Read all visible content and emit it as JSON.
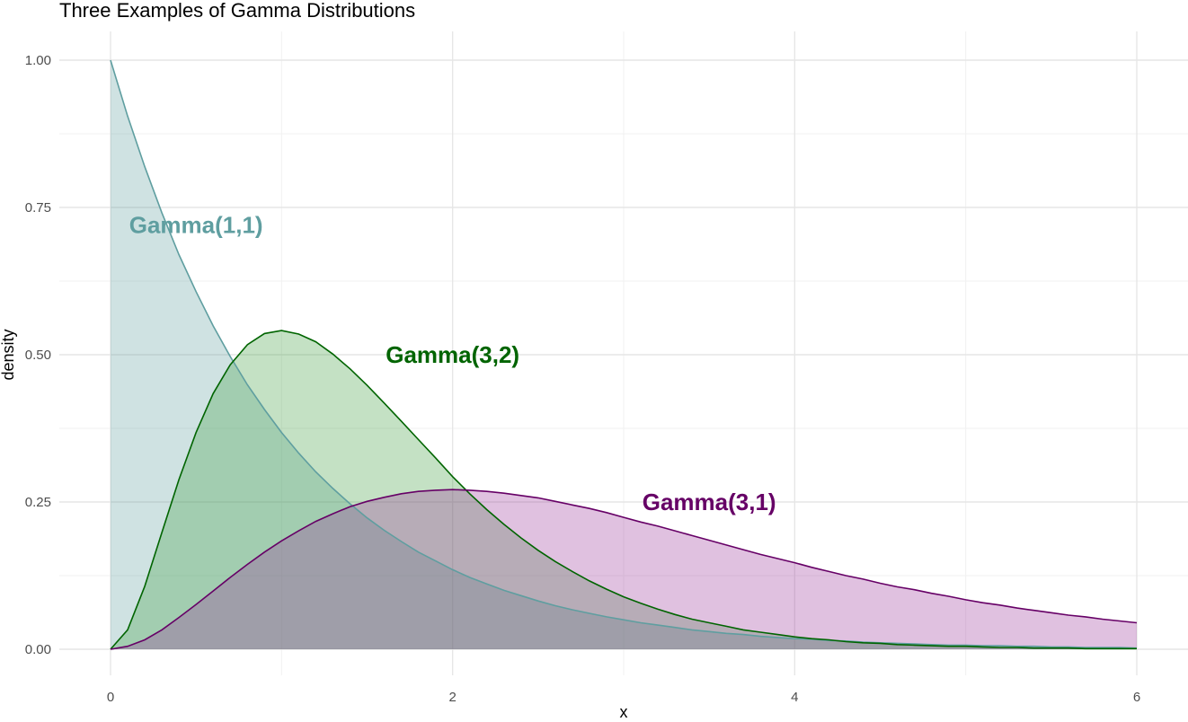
{
  "chart_data": {
    "type": "area",
    "title": "Three Examples of Gamma Distributions",
    "xlabel": "x",
    "ylabel": "density",
    "xlim": [
      0,
      6
    ],
    "ylim": [
      0,
      1
    ],
    "x_ticks": [
      0,
      2,
      4,
      6
    ],
    "x_tick_labels": [
      "0",
      "2",
      "4",
      "6"
    ],
    "x_minor_ticks": [
      1,
      3,
      5
    ],
    "y_ticks": [
      0,
      0.25,
      0.5,
      0.75,
      1.0
    ],
    "y_tick_labels": [
      "0.00",
      "0.25",
      "0.50",
      "0.75",
      "1.00"
    ],
    "y_minor_ticks": [
      0.125,
      0.375,
      0.625,
      0.875
    ],
    "grid": true,
    "legend": "none",
    "x": [
      0,
      0.1,
      0.2,
      0.3,
      0.4,
      0.5,
      0.6,
      0.7,
      0.8,
      0.9,
      1.0,
      1.1,
      1.2,
      1.3,
      1.4,
      1.5,
      1.6,
      1.7,
      1.8,
      1.9,
      2.0,
      2.1,
      2.2,
      2.3,
      2.4,
      2.5,
      2.6,
      2.7,
      2.8,
      2.9,
      3.0,
      3.1,
      3.2,
      3.3,
      3.4,
      3.5,
      3.6,
      3.7,
      3.8,
      3.9,
      4.0,
      4.1,
      4.2,
      4.3,
      4.4,
      4.5,
      4.6,
      4.7,
      4.8,
      4.9,
      5.0,
      5.1,
      5.2,
      5.3,
      5.4,
      5.5,
      5.6,
      5.7,
      5.8,
      5.9,
      6.0
    ],
    "series": [
      {
        "name": "Gamma(1,1)",
        "color": "#5f9ea0",
        "fill": "#5f9ea0",
        "values": [
          1.0,
          0.905,
          0.819,
          0.741,
          0.67,
          0.607,
          0.549,
          0.497,
          0.449,
          0.407,
          0.368,
          0.333,
          0.301,
          0.273,
          0.247,
          0.223,
          0.202,
          0.183,
          0.165,
          0.15,
          0.135,
          0.122,
          0.111,
          0.1,
          0.091,
          0.082,
          0.074,
          0.067,
          0.061,
          0.055,
          0.05,
          0.045,
          0.041,
          0.037,
          0.033,
          0.03,
          0.027,
          0.025,
          0.022,
          0.02,
          0.018,
          0.017,
          0.015,
          0.014,
          0.012,
          0.011,
          0.01,
          0.009,
          0.008,
          0.007,
          0.007,
          0.006,
          0.006,
          0.005,
          0.005,
          0.004,
          0.004,
          0.003,
          0.003,
          0.003,
          0.002
        ],
        "label": {
          "text": "Gamma(1,1)",
          "x": 0.5,
          "y": 0.72
        }
      },
      {
        "name": "Gamma(3,2)",
        "color": "#006400",
        "fill": "#3d9a3d",
        "values": [
          0.0,
          0.033,
          0.107,
          0.198,
          0.288,
          0.368,
          0.434,
          0.483,
          0.517,
          0.536,
          0.541,
          0.535,
          0.522,
          0.501,
          0.476,
          0.448,
          0.418,
          0.387,
          0.356,
          0.325,
          0.293,
          0.264,
          0.237,
          0.212,
          0.189,
          0.168,
          0.149,
          0.132,
          0.116,
          0.102,
          0.089,
          0.078,
          0.068,
          0.059,
          0.051,
          0.045,
          0.039,
          0.033,
          0.029,
          0.025,
          0.021,
          0.018,
          0.016,
          0.013,
          0.011,
          0.01,
          0.008,
          0.007,
          0.006,
          0.005,
          0.005,
          0.004,
          0.003,
          0.003,
          0.002,
          0.002,
          0.002,
          0.001,
          0.001,
          0.001,
          0.001
        ],
        "label": {
          "text": "Gamma(3,2)",
          "x": 2.0,
          "y": 0.5
        }
      },
      {
        "name": "Gamma(3,1)",
        "color": "#660066",
        "fill": "#993399",
        "values": [
          0.0,
          0.005,
          0.016,
          0.033,
          0.054,
          0.076,
          0.099,
          0.122,
          0.144,
          0.165,
          0.184,
          0.201,
          0.217,
          0.23,
          0.242,
          0.251,
          0.258,
          0.264,
          0.268,
          0.27,
          0.271,
          0.27,
          0.268,
          0.265,
          0.261,
          0.257,
          0.251,
          0.245,
          0.239,
          0.232,
          0.224,
          0.216,
          0.209,
          0.201,
          0.193,
          0.185,
          0.177,
          0.169,
          0.161,
          0.154,
          0.147,
          0.139,
          0.132,
          0.125,
          0.119,
          0.112,
          0.106,
          0.101,
          0.095,
          0.09,
          0.084,
          0.079,
          0.075,
          0.07,
          0.066,
          0.062,
          0.058,
          0.055,
          0.051,
          0.048,
          0.045
        ],
        "label": {
          "text": "Gamma(3,1)",
          "x": 3.5,
          "y": 0.25
        }
      }
    ]
  }
}
